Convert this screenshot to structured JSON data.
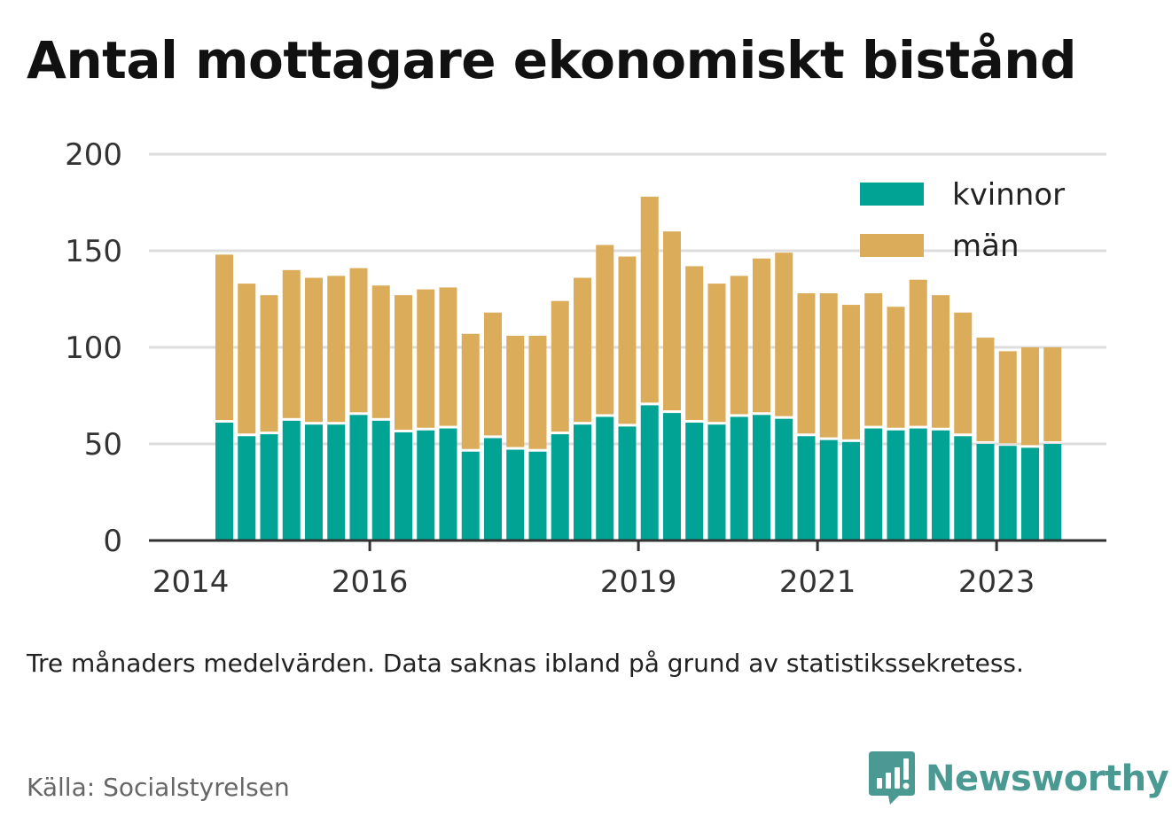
{
  "title": "Antal mottagare ekonomiskt bistånd",
  "note": "Tre månaders medelvärden. Data saknas ibland på grund av statistikssekretess.",
  "source": "Källa: Socialstyrelsen",
  "brand": {
    "name": "Newsworthy",
    "color": "#4a9a93",
    "icon": "newsworthy-logo-icon"
  },
  "colors": {
    "kvinnor": "#00a394",
    "man": "#dbac5a",
    "grid": "#dddddd",
    "axis": "#333333",
    "text": "#333333"
  },
  "chart_data": {
    "type": "bar",
    "stacked": true,
    "ylim": [
      0,
      200
    ],
    "yticks": [
      "0",
      "50",
      "100",
      "150",
      "200"
    ],
    "xticks": [
      "2014",
      "2016",
      "2019",
      "2021",
      "2023"
    ],
    "legend": {
      "position": "top-right",
      "entries": [
        "kvinnor",
        "män"
      ]
    },
    "categories": [
      "2014-Q2",
      "2014-Q3",
      "2014-Q4",
      "2015-Q1",
      "2015-Q2",
      "2015-Q3",
      "2015-Q4",
      "2016-Q1",
      "2016-Q2",
      "2016-Q3",
      "2016-Q4",
      "2017-Q1",
      "2017-Q2",
      "2017-Q3",
      "2017-Q4",
      "2018-Q1",
      "2018-Q2",
      "2018-Q3",
      "2018-Q4",
      "2019-Q1",
      "2019-Q2",
      "2019-Q3",
      "2019-Q4",
      "2020-Q1",
      "2020-Q2",
      "2020-Q3",
      "2020-Q4",
      "2021-Q1",
      "2021-Q2",
      "2021-Q3",
      "2021-Q4",
      "2022-Q1",
      "2022-Q2",
      "2022-Q3",
      "2022-Q4",
      "2023-Q1",
      "2023-Q2",
      "2023-Q3"
    ],
    "series": [
      {
        "name": "kvinnor",
        "values": [
          61,
          54,
          55,
          62,
          60,
          60,
          65,
          62,
          56,
          57,
          58,
          46,
          53,
          47,
          46,
          55,
          60,
          64,
          59,
          70,
          66,
          61,
          60,
          64,
          65,
          63,
          54,
          52,
          51,
          58,
          57,
          58,
          57,
          54,
          50,
          49,
          48,
          50
        ]
      },
      {
        "name": "män",
        "values": [
          87,
          79,
          72,
          78,
          76,
          77,
          76,
          70,
          71,
          73,
          73,
          61,
          65,
          59,
          60,
          69,
          76,
          89,
          88,
          108,
          94,
          81,
          73,
          73,
          81,
          86,
          74,
          76,
          71,
          70,
          64,
          77,
          70,
          64,
          55,
          49,
          52,
          50
        ]
      }
    ]
  }
}
